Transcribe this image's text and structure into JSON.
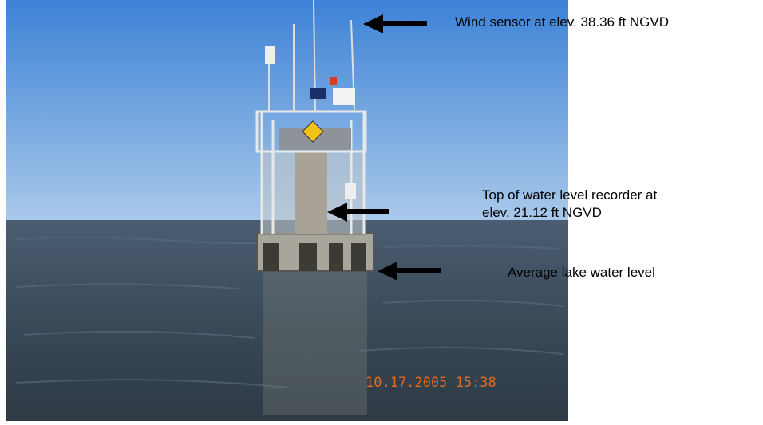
{
  "annotations": {
    "wind_sensor": "Wind sensor at elev. 38.36 ft NGVD",
    "recorder": [
      "Top of water level recorder at",
      "elev. 21.12 ft NGVD"
    ],
    "lake_level": "Average lake water level"
  },
  "photo": {
    "timestamp": "10.17.2005 15:38"
  }
}
